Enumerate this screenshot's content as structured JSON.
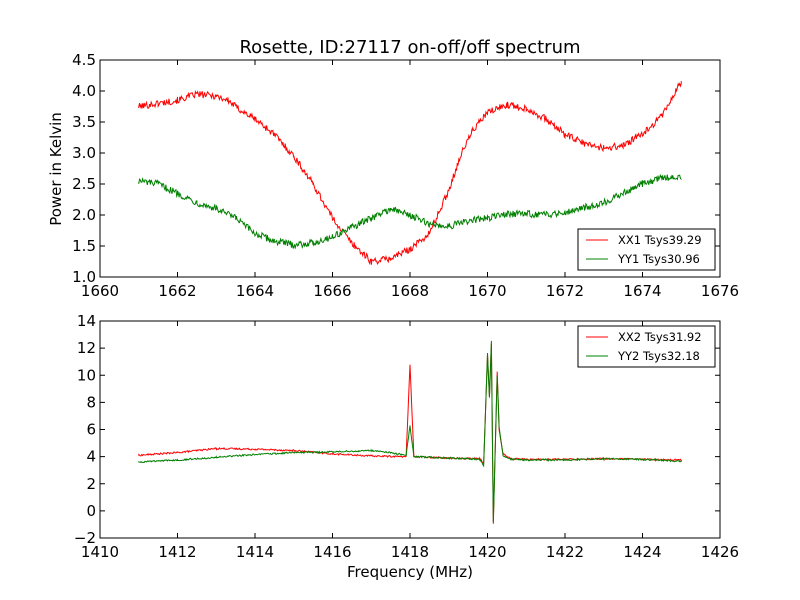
{
  "figure": {
    "title": "Rosette, ID:27117 on-off/off spectrum",
    "ylabel": "Power in Kelvin",
    "xlabel": "Frequency (MHz)"
  },
  "chart_data": [
    {
      "type": "line",
      "title": "Rosette, ID:27117 on-off/off spectrum",
      "xlabel": "",
      "ylabel": "Power in Kelvin",
      "xlim": [
        1660,
        1676
      ],
      "ylim": [
        1.0,
        4.5
      ],
      "xticks": [
        "1660",
        "1662",
        "1664",
        "1666",
        "1668",
        "1670",
        "1672",
        "1674",
        "1676"
      ],
      "yticks": [
        "1.0",
        "1.5",
        "2.0",
        "2.5",
        "3.0",
        "3.5",
        "4.0",
        "4.5"
      ],
      "grid": false,
      "legend_position": "lower-right",
      "series": [
        {
          "name": "XX1 Tsys39.29",
          "color": "#ff0000",
          "points": [
            [
              1661.0,
              3.75
            ],
            [
              1661.5,
              3.8
            ],
            [
              1662.0,
              3.85
            ],
            [
              1662.5,
              3.95
            ],
            [
              1663.0,
              3.92
            ],
            [
              1663.3,
              3.85
            ],
            [
              1663.6,
              3.7
            ],
            [
              1664.0,
              3.55
            ],
            [
              1664.5,
              3.3
            ],
            [
              1665.0,
              2.95
            ],
            [
              1665.5,
              2.5
            ],
            [
              1666.0,
              1.95
            ],
            [
              1666.5,
              1.55
            ],
            [
              1667.0,
              1.25
            ],
            [
              1667.5,
              1.3
            ],
            [
              1668.0,
              1.45
            ],
            [
              1668.5,
              1.7
            ],
            [
              1669.0,
              2.4
            ],
            [
              1669.3,
              2.95
            ],
            [
              1669.6,
              3.35
            ],
            [
              1670.0,
              3.65
            ],
            [
              1670.5,
              3.78
            ],
            [
              1671.0,
              3.72
            ],
            [
              1671.5,
              3.55
            ],
            [
              1672.0,
              3.3
            ],
            [
              1672.5,
              3.15
            ],
            [
              1673.0,
              3.08
            ],
            [
              1673.5,
              3.12
            ],
            [
              1674.0,
              3.3
            ],
            [
              1674.5,
              3.6
            ],
            [
              1675.0,
              4.15
            ]
          ]
        },
        {
          "name": "YY1 Tsys30.96",
          "color": "#008000",
          "points": [
            [
              1661.0,
              2.55
            ],
            [
              1661.5,
              2.5
            ],
            [
              1662.0,
              2.35
            ],
            [
              1662.5,
              2.2
            ],
            [
              1663.0,
              2.1
            ],
            [
              1663.5,
              1.95
            ],
            [
              1664.0,
              1.7
            ],
            [
              1664.5,
              1.58
            ],
            [
              1665.0,
              1.52
            ],
            [
              1665.5,
              1.55
            ],
            [
              1666.0,
              1.65
            ],
            [
              1666.5,
              1.8
            ],
            [
              1667.0,
              1.95
            ],
            [
              1667.5,
              2.1
            ],
            [
              1668.0,
              2.0
            ],
            [
              1668.5,
              1.85
            ],
            [
              1669.0,
              1.82
            ],
            [
              1669.5,
              1.9
            ],
            [
              1670.0,
              1.95
            ],
            [
              1670.5,
              2.02
            ],
            [
              1671.0,
              2.02
            ],
            [
              1671.5,
              2.0
            ],
            [
              1672.0,
              2.05
            ],
            [
              1672.5,
              2.12
            ],
            [
              1673.0,
              2.2
            ],
            [
              1673.5,
              2.35
            ],
            [
              1674.0,
              2.5
            ],
            [
              1674.5,
              2.6
            ],
            [
              1675.0,
              2.62
            ]
          ]
        }
      ]
    },
    {
      "type": "line",
      "title": "",
      "xlabel": "Frequency (MHz)",
      "ylabel": "",
      "xlim": [
        1410,
        1426
      ],
      "ylim": [
        -2,
        14
      ],
      "xticks": [
        "1410",
        "1412",
        "1414",
        "1416",
        "1418",
        "1420",
        "1422",
        "1424",
        "1426"
      ],
      "yticks": [
        "−2",
        "0",
        "2",
        "4",
        "6",
        "8",
        "10",
        "12",
        "14"
      ],
      "grid": false,
      "legend_position": "upper-right",
      "series": [
        {
          "name": "XX2 Tsys31.92",
          "color": "#ff0000",
          "points": [
            [
              1411.0,
              4.1
            ],
            [
              1412.0,
              4.3
            ],
            [
              1413.0,
              4.6
            ],
            [
              1414.0,
              4.55
            ],
            [
              1415.0,
              4.45
            ],
            [
              1416.0,
              4.2
            ],
            [
              1417.0,
              4.05
            ],
            [
              1417.9,
              4.0
            ],
            [
              1418.0,
              10.8
            ],
            [
              1418.1,
              4.0
            ],
            [
              1419.0,
              3.9
            ],
            [
              1419.8,
              3.85
            ],
            [
              1419.9,
              3.5
            ],
            [
              1420.0,
              11.5
            ],
            [
              1420.05,
              8.5
            ],
            [
              1420.1,
              12.3
            ],
            [
              1420.15,
              -0.9
            ],
            [
              1420.25,
              10.3
            ],
            [
              1420.3,
              6.0
            ],
            [
              1420.4,
              4.2
            ],
            [
              1420.6,
              3.85
            ],
            [
              1421.0,
              3.8
            ],
            [
              1422.0,
              3.8
            ],
            [
              1423.0,
              3.85
            ],
            [
              1424.0,
              3.8
            ],
            [
              1425.0,
              3.75
            ]
          ]
        },
        {
          "name": "YY2 Tsys32.18",
          "color": "#008000",
          "points": [
            [
              1411.0,
              3.6
            ],
            [
              1412.0,
              3.75
            ],
            [
              1413.0,
              3.95
            ],
            [
              1414.0,
              4.15
            ],
            [
              1415.0,
              4.3
            ],
            [
              1416.0,
              4.35
            ],
            [
              1417.0,
              4.45
            ],
            [
              1417.5,
              4.3
            ],
            [
              1417.9,
              4.1
            ],
            [
              1418.0,
              6.3
            ],
            [
              1418.1,
              4.0
            ],
            [
              1419.0,
              3.9
            ],
            [
              1419.8,
              3.8
            ],
            [
              1419.9,
              3.3
            ],
            [
              1420.0,
              11.6
            ],
            [
              1420.05,
              8.3
            ],
            [
              1420.1,
              12.5
            ],
            [
              1420.15,
              -0.9
            ],
            [
              1420.25,
              10.0
            ],
            [
              1420.3,
              6.2
            ],
            [
              1420.4,
              4.1
            ],
            [
              1420.6,
              3.8
            ],
            [
              1421.0,
              3.75
            ],
            [
              1422.0,
              3.75
            ],
            [
              1423.0,
              3.85
            ],
            [
              1424.0,
              3.8
            ],
            [
              1425.0,
              3.65
            ]
          ]
        }
      ]
    }
  ]
}
